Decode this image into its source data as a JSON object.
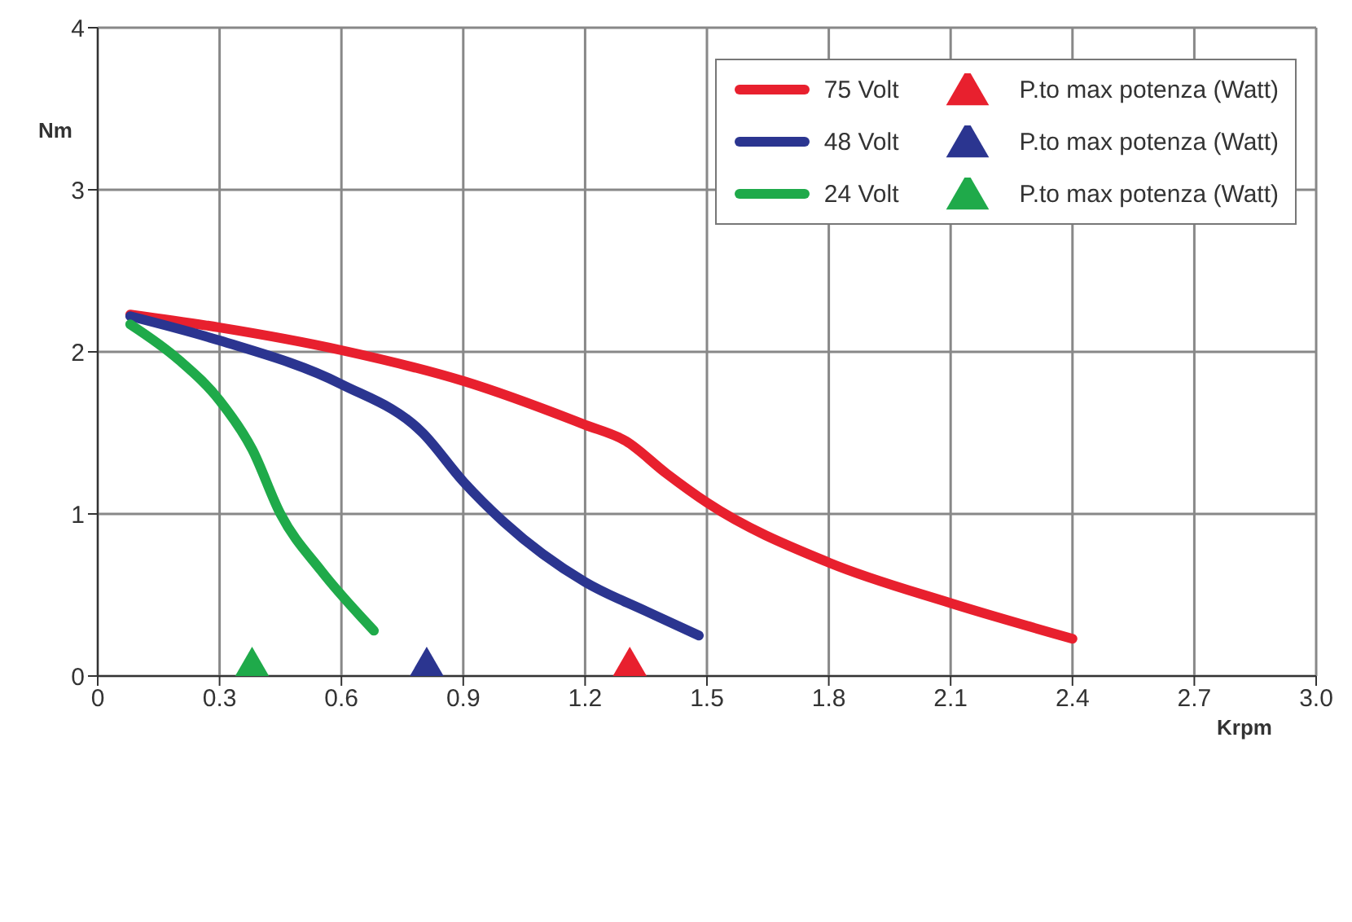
{
  "chart_data": {
    "type": "line",
    "xlabel": "Krpm",
    "ylabel": "Nm",
    "xlim": [
      0,
      3.0
    ],
    "ylim": [
      0,
      4
    ],
    "xticks": [
      0,
      0.3,
      0.6,
      0.9,
      1.2,
      1.5,
      1.8,
      2.1,
      2.4,
      2.7,
      {
        "value": 3.0,
        "label": "3.0"
      }
    ],
    "yticks": [
      0,
      1,
      2,
      3,
      4
    ],
    "grid": true,
    "legend": "top right",
    "line_style": "solid",
    "series": [
      {
        "name": "75 Volt",
        "color": "#e8202e",
        "x": [
          0.08,
          0.3,
          0.6,
          0.9,
          1.2,
          1.3,
          1.4,
          1.5,
          1.8,
          2.1,
          2.4
        ],
        "values": [
          2.23,
          2.15,
          2.01,
          1.82,
          1.55,
          1.45,
          1.25,
          1.07,
          0.7,
          0.45,
          0.23
        ]
      },
      {
        "name": "48 Volt",
        "color": "#2b3590",
        "x": [
          0.08,
          0.3,
          0.6,
          0.8,
          0.9,
          1.0,
          1.2,
          1.35,
          1.48
        ],
        "values": [
          2.22,
          2.07,
          1.8,
          1.5,
          1.2,
          0.95,
          0.58,
          0.4,
          0.25
        ]
      },
      {
        "name": "24 Volt",
        "color": "#1faa4a",
        "x": [
          0.08,
          0.2,
          0.3,
          0.38,
          0.45,
          0.55,
          0.68
        ],
        "values": [
          2.17,
          1.95,
          1.7,
          1.4,
          1.0,
          0.65,
          0.28
        ]
      },
      {
        "name": "P.to max potenza (Watt)",
        "type": "scatter",
        "marker": "triangle",
        "color": "#e8202e",
        "x": [
          1.31
        ],
        "values": [
          0
        ]
      },
      {
        "name": "P.to max potenza (Watt)",
        "type": "scatter",
        "marker": "triangle",
        "color": "#2b3590",
        "x": [
          0.81
        ],
        "values": [
          0
        ]
      },
      {
        "name": "P.to max potenza (Watt)",
        "type": "scatter",
        "marker": "triangle",
        "color": "#1faa4a",
        "x": [
          0.38
        ],
        "values": [
          0
        ]
      }
    ]
  }
}
